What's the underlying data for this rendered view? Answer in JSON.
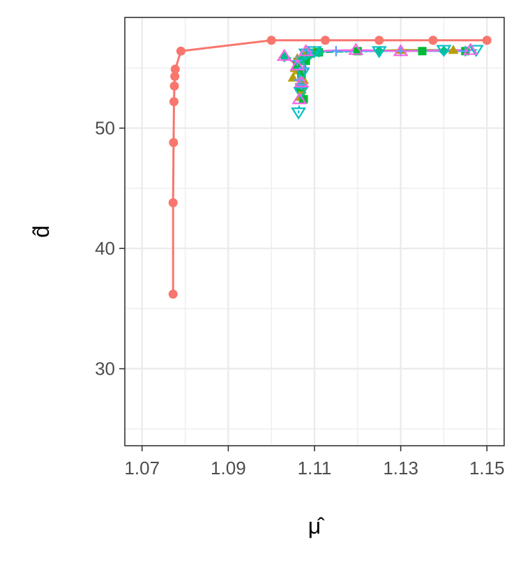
{
  "chart_data": {
    "type": "scatter",
    "title": "",
    "xlabel": "μ̂",
    "ylabel": "d̂",
    "xlim": [
      1.066,
      1.154
    ],
    "ylim": [
      23.6,
      59.2
    ],
    "x_ticks": [
      1.07,
      1.09,
      1.11,
      1.13,
      1.15
    ],
    "x_tick_labels": [
      "1.07",
      "1.09",
      "1.11",
      "1.13",
      "1.15"
    ],
    "y_ticks": [
      30,
      40,
      50
    ],
    "y_tick_labels": [
      "30",
      "40",
      "50"
    ],
    "grid": true,
    "legend": "none",
    "series": [
      {
        "marker": "filled-circle",
        "color": "#F8766D",
        "line": "smooth",
        "points": [
          [
            1.0772,
            36.2
          ],
          [
            1.0772,
            43.8
          ],
          [
            1.0773,
            48.8
          ],
          [
            1.0774,
            52.2
          ],
          [
            1.0775,
            53.5
          ],
          [
            1.0776,
            54.3
          ],
          [
            1.0777,
            54.9
          ],
          [
            1.079,
            56.4
          ],
          [
            1.1,
            57.3
          ],
          [
            1.1125,
            57.3
          ],
          [
            1.125,
            57.3
          ],
          [
            1.1375,
            57.3
          ],
          [
            1.15,
            57.3
          ]
        ]
      },
      {
        "marker": "filled-triangle",
        "color": "#B79F00",
        "line": "solid",
        "points": [
          [
            1.105,
            54.2
          ],
          [
            1.1055,
            55.0
          ],
          [
            1.106,
            55.8
          ],
          [
            1.1065,
            54.8
          ],
          [
            1.107,
            53.2
          ],
          [
            1.1075,
            54.0
          ],
          [
            1.1068,
            52.6
          ],
          [
            1.108,
            56.3
          ],
          [
            1.11,
            56.4
          ],
          [
            1.12,
            56.4
          ],
          [
            1.13,
            56.5
          ],
          [
            1.1422,
            56.5
          ]
        ]
      },
      {
        "marker": "filled-square",
        "color": "#00BA38",
        "line": "dashed",
        "points": [
          [
            1.106,
            55.2
          ],
          [
            1.107,
            54.5
          ],
          [
            1.1065,
            53.4
          ],
          [
            1.1075,
            52.4
          ],
          [
            1.108,
            55.6
          ],
          [
            1.109,
            56.2
          ],
          [
            1.111,
            56.3
          ],
          [
            1.12,
            56.4
          ],
          [
            1.135,
            56.4
          ],
          [
            1.145,
            56.4
          ]
        ]
      },
      {
        "marker": "filled-diamond",
        "color": "#00C08B",
        "line": "dotted",
        "points": [
          [
            1.103,
            55.9
          ],
          [
            1.107,
            55.7
          ],
          [
            1.109,
            56.1
          ],
          [
            1.111,
            56.3
          ],
          [
            1.125,
            56.4
          ],
          [
            1.14,
            56.4
          ]
        ]
      },
      {
        "marker": "open-inverted-triangle",
        "color": "#00BFC4",
        "line": "dotted",
        "points": [
          [
            1.1063,
            51.3
          ],
          [
            1.1068,
            53.0
          ],
          [
            1.1072,
            54.6
          ],
          [
            1.108,
            56.2
          ],
          [
            1.11,
            56.4
          ],
          [
            1.125,
            56.4
          ],
          [
            1.14,
            56.5
          ],
          [
            1.1475,
            56.5
          ]
        ]
      },
      {
        "marker": "plus",
        "color": "#619CFF",
        "line": "solid",
        "points": [
          [
            1.106,
            55.6
          ],
          [
            1.1065,
            54.0
          ],
          [
            1.107,
            53.6
          ],
          [
            1.1075,
            55.0
          ],
          [
            1.1085,
            56.4
          ],
          [
            1.115,
            56.4
          ],
          [
            1.13,
            56.4
          ],
          [
            1.145,
            56.4
          ]
        ]
      },
      {
        "marker": "open-triangle",
        "color": "#F564E3",
        "line": "solid",
        "points": [
          [
            1.103,
            56.0
          ],
          [
            1.106,
            55.2
          ],
          [
            1.1065,
            52.4
          ],
          [
            1.107,
            53.8
          ],
          [
            1.108,
            56.4
          ],
          [
            1.1196,
            56.5
          ],
          [
            1.13,
            56.4
          ],
          [
            1.1462,
            56.5
          ]
        ]
      }
    ]
  }
}
